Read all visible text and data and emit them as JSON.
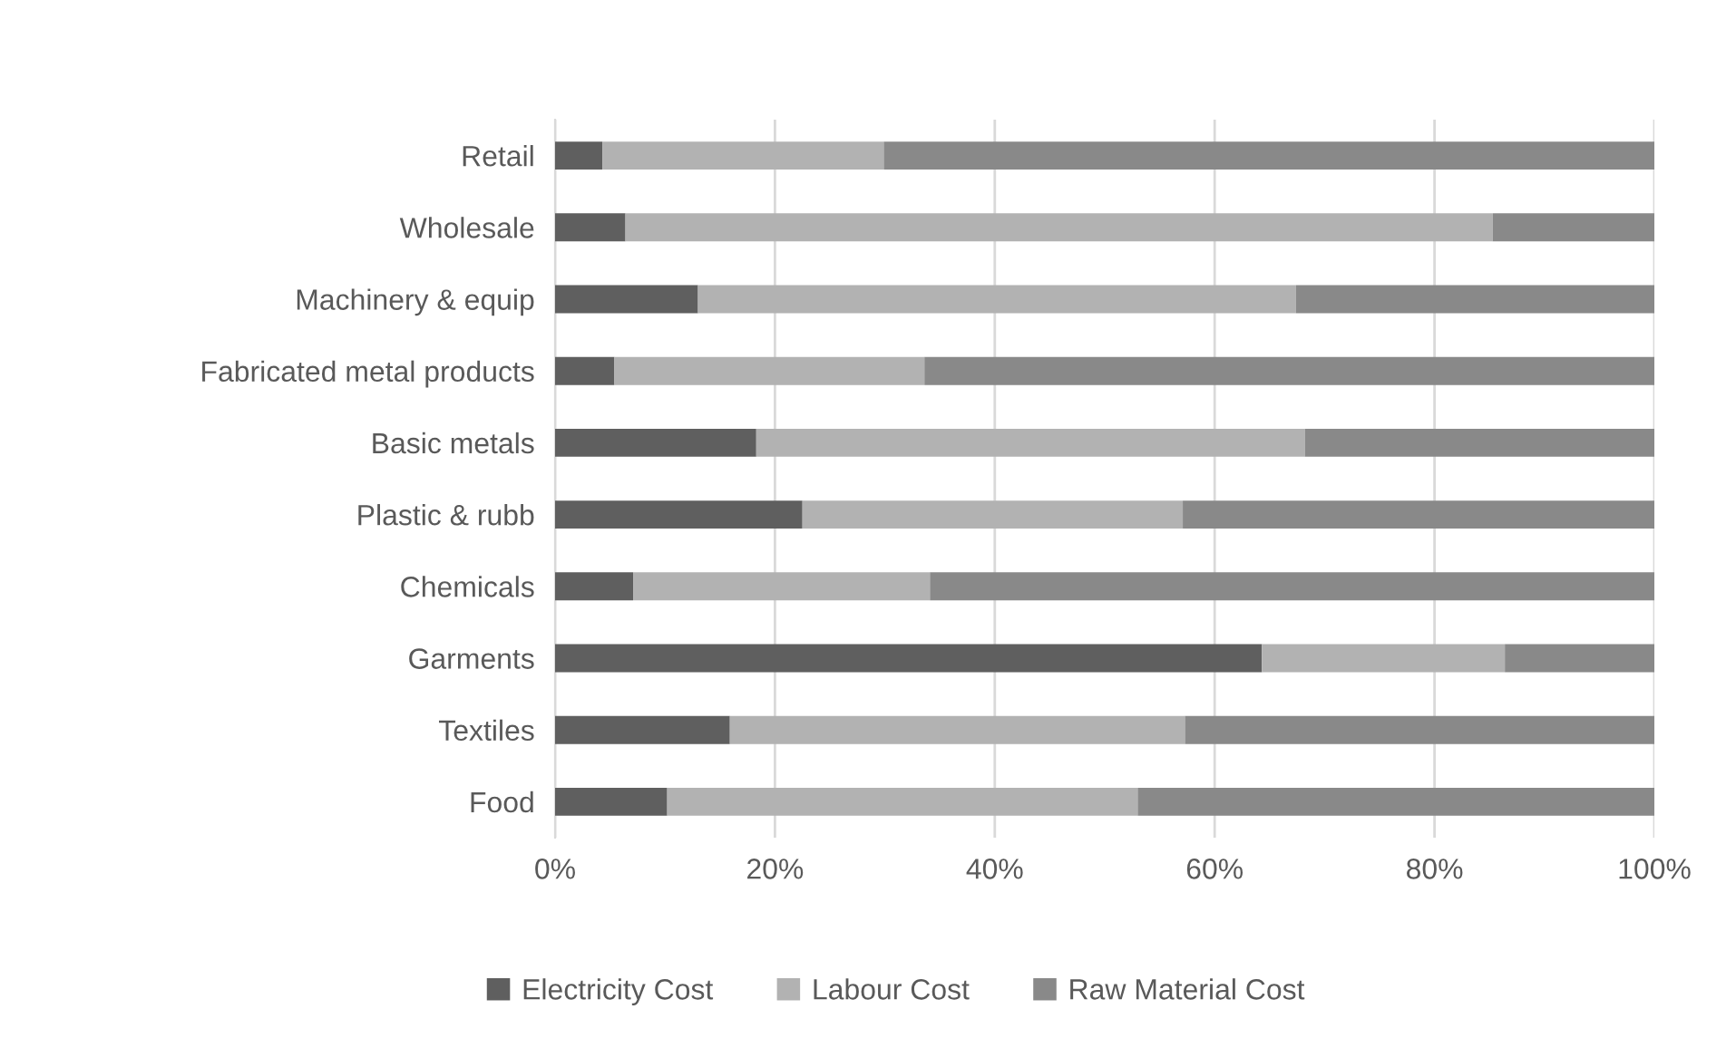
{
  "chart_data": {
    "type": "bar",
    "orientation": "horizontal",
    "stacked": true,
    "categories": [
      "Retail",
      "Wholesale",
      "Machinery & equip",
      "Fabricated metal products",
      "Basic metals",
      "Plastic & rubb",
      "Chemicals",
      "Garments",
      "Textiles",
      "Food"
    ],
    "series": [
      {
        "name": "Electricity Cost",
        "color": "#5f5f5f",
        "values": [
          4.3,
          6.4,
          13.0,
          5.4,
          18.3,
          22.5,
          7.1,
          64.3,
          15.9,
          10.2
        ]
      },
      {
        "name": "Labour Cost",
        "color": "#b2b2b2",
        "values": [
          25.6,
          78.9,
          54.4,
          28.2,
          49.9,
          34.6,
          27.0,
          22.1,
          41.4,
          42.8
        ]
      },
      {
        "name": "Raw Material Cost",
        "color": "#898989",
        "values": [
          70.1,
          14.7,
          32.6,
          66.4,
          31.8,
          42.9,
          65.9,
          13.6,
          42.7,
          47.0
        ]
      }
    ],
    "xlim": [
      0,
      100
    ],
    "xticks": [
      {
        "value": 0,
        "label": "0%"
      },
      {
        "value": 20,
        "label": "20%"
      },
      {
        "value": 40,
        "label": "40%"
      },
      {
        "value": 60,
        "label": "60%"
      },
      {
        "value": 80,
        "label": "80%"
      },
      {
        "value": 100,
        "label": "100%"
      }
    ],
    "grid": "x",
    "legend": "bottom"
  }
}
